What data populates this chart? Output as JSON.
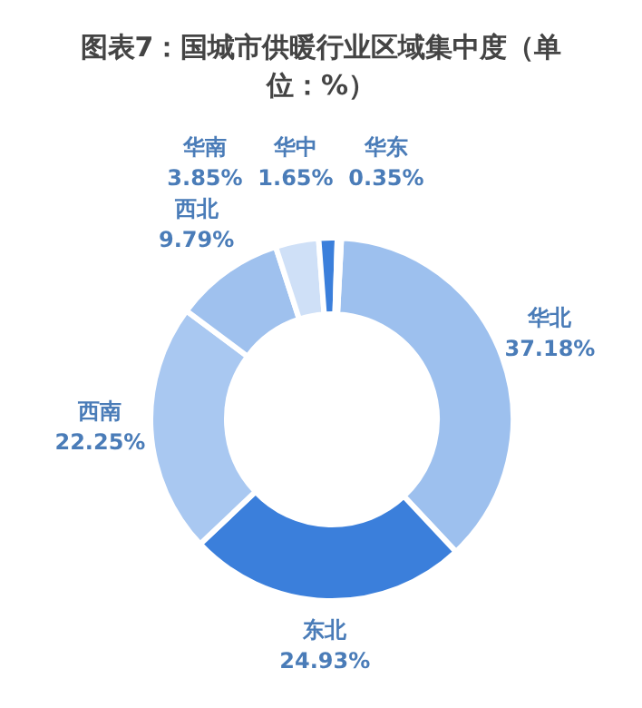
{
  "chart_data": {
    "type": "donut",
    "title": "图表7：国城市供暖行业区域集中度（单位：%）",
    "categories": [
      "华北",
      "东北",
      "西南",
      "西北",
      "华南",
      "华中",
      "华东"
    ],
    "values": [
      37.18,
      24.93,
      22.25,
      9.79,
      3.85,
      1.65,
      0.35
    ],
    "value_labels": [
      "37.18%",
      "24.93%",
      "22.25%",
      "9.79%",
      "3.85%",
      "1.65%",
      "0.35%"
    ],
    "colors": [
      "#9dc0ee",
      "#3b7fdb",
      "#a9c8f1",
      "#9fc1ee",
      "#cfe0f7",
      "#3b7fdb",
      "#9dc0ee"
    ],
    "legend": false
  }
}
